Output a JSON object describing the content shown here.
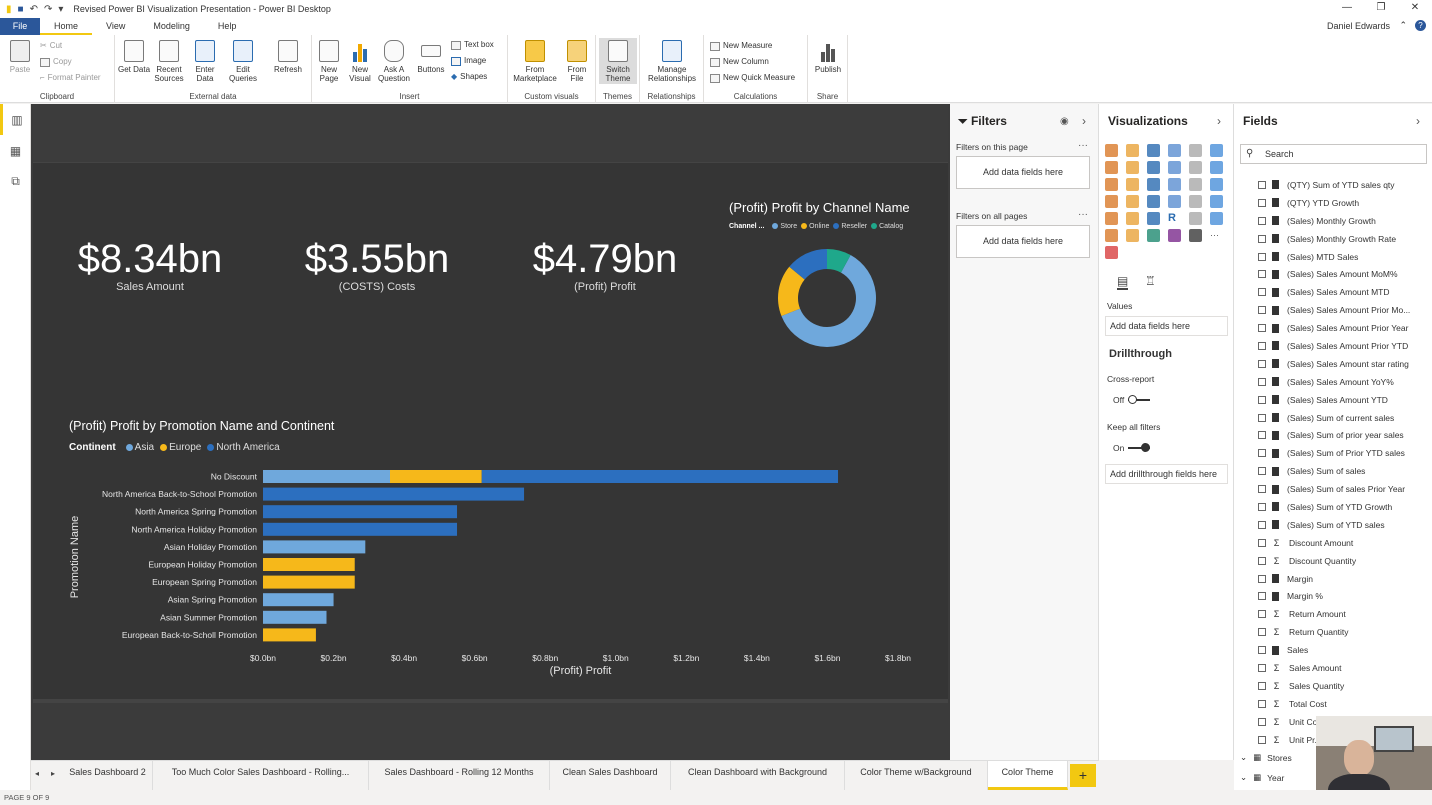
{
  "app": {
    "title": "Revised Power BI Visualization Presentation - Power BI Desktop",
    "user": "Daniel Edwards"
  },
  "menu": {
    "file": "File",
    "tabs": [
      "Home",
      "View",
      "Modeling",
      "Help"
    ]
  },
  "ribbon": {
    "clipboard": {
      "paste": "Paste",
      "cut": "Cut",
      "copy": "Copy",
      "format_painter": "Format Painter",
      "label": "Clipboard"
    },
    "external": {
      "get_data": "Get Data",
      "recent_sources": "Recent Sources",
      "enter_data": "Enter Data",
      "edit_queries": "Edit Queries",
      "refresh": "Refresh",
      "label": "External data"
    },
    "insert": {
      "new_page": "New Page",
      "new_visual": "New Visual",
      "ask_question": "Ask A Question",
      "buttons": "Buttons",
      "text_box": "Text box",
      "image": "Image",
      "shapes": "Shapes",
      "label": "Insert"
    },
    "custom": {
      "from_marketplace": "From Marketplace",
      "from_file": "From File",
      "label": "Custom visuals"
    },
    "themes": {
      "switch_theme": "Switch Theme",
      "label": "Themes"
    },
    "relationships": {
      "manage": "Manage Relationships",
      "label": "Relationships"
    },
    "calculations": {
      "new_measure": "New Measure",
      "new_column": "New Column",
      "new_quick_measure": "New Quick Measure",
      "label": "Calculations"
    },
    "share": {
      "publish": "Publish",
      "label": "Share"
    }
  },
  "kpis": [
    {
      "value": "$8.34bn",
      "label": "Sales Amount"
    },
    {
      "value": "$3.55bn",
      "label": "(COSTS) Costs"
    },
    {
      "value": "$4.79bn",
      "label": "(Profit) Profit"
    }
  ],
  "colors": {
    "store": "#6fa8dc",
    "online": "#f6b81a",
    "reseller": "#2c6fbf",
    "catalog": "#1fa88b",
    "asia": "#6fa8dc",
    "europe": "#f6b81a",
    "north_america": "#2c6fbf"
  },
  "chart_data": [
    {
      "type": "pie",
      "title": "(Profit) Profit by Channel Name",
      "legend_title": "Channel ...",
      "categories": [
        "Store",
        "Online",
        "Reseller",
        "Catalog"
      ],
      "values": [
        61,
        17,
        14,
        8
      ]
    },
    {
      "type": "bar",
      "orientation": "horizontal",
      "stacked": true,
      "title": "(Profit) Profit by Promotion Name and Continent",
      "legend_title": "Continent",
      "xlabel": "(Profit) Profit",
      "ylabel": "Promotion Name",
      "xlim": [
        0,
        1.8
      ],
      "xticks": [
        "$0.0bn",
        "$0.2bn",
        "$0.4bn",
        "$0.6bn",
        "$0.8bn",
        "$1.0bn",
        "$1.2bn",
        "$1.4bn",
        "$1.6bn",
        "$1.8bn"
      ],
      "categories": [
        "No Discount",
        "North America Back-to-School Promotion",
        "North America Spring Promotion",
        "North America Holiday Promotion",
        "Asian Holiday Promotion",
        "European Holiday Promotion",
        "European Spring Promotion",
        "Asian Spring Promotion",
        "Asian Summer Promotion",
        "European Back-to-Scholl Promotion"
      ],
      "series": [
        {
          "name": "Asia",
          "values": [
            0.36,
            0,
            0,
            0,
            0.29,
            0,
            0,
            0.2,
            0.18,
            0
          ]
        },
        {
          "name": "Europe",
          "values": [
            0.26,
            0,
            0,
            0,
            0,
            0.26,
            0.26,
            0,
            0,
            0.15
          ]
        },
        {
          "name": "North America",
          "values": [
            1.01,
            0.74,
            0.55,
            0.55,
            0,
            0,
            0,
            0,
            0,
            0
          ]
        }
      ]
    }
  ],
  "filters": {
    "title": "Filters",
    "on_page": "Filters on this page",
    "on_all": "Filters on all pages",
    "add": "Add data fields here"
  },
  "viz": {
    "title": "Visualizations",
    "values": "Values",
    "add_values": "Add data fields here",
    "drillthrough": "Drillthrough",
    "cross_report": "Cross-report",
    "off": "Off",
    "keep_filters": "Keep all filters",
    "on": "On",
    "add_drill": "Add drillthrough fields here"
  },
  "fields": {
    "title": "Fields",
    "search": "Search",
    "items": [
      {
        "name": "(QTY) Sum of YTD sales qty",
        "kind": "calc"
      },
      {
        "name": "(QTY) YTD Growth",
        "kind": "calc"
      },
      {
        "name": "(Sales) Monthly Growth",
        "kind": "calc"
      },
      {
        "name": "(Sales) Monthly Growth Rate",
        "kind": "calc"
      },
      {
        "name": "(Sales) MTD Sales",
        "kind": "calc"
      },
      {
        "name": "(Sales) Sales Amount MoM%",
        "kind": "calc"
      },
      {
        "name": "(Sales) Sales Amount MTD",
        "kind": "calc"
      },
      {
        "name": "(Sales) Sales Amount Prior Mo...",
        "kind": "calc"
      },
      {
        "name": "(Sales) Sales Amount Prior Year",
        "kind": "calc"
      },
      {
        "name": "(Sales) Sales Amount Prior YTD",
        "kind": "calc"
      },
      {
        "name": "(Sales) Sales Amount star rating",
        "kind": "calc"
      },
      {
        "name": "(Sales) Sales Amount YoY%",
        "kind": "calc"
      },
      {
        "name": "(Sales) Sales Amount YTD",
        "kind": "calc"
      },
      {
        "name": "(Sales) Sum of current sales",
        "kind": "calc"
      },
      {
        "name": "(Sales) Sum of prior year sales",
        "kind": "calc"
      },
      {
        "name": "(Sales) Sum of Prior YTD sales",
        "kind": "calc"
      },
      {
        "name": "(Sales) Sum of sales",
        "kind": "calc"
      },
      {
        "name": "(Sales) Sum of sales Prior Year",
        "kind": "calc"
      },
      {
        "name": "(Sales) Sum of YTD Growth",
        "kind": "calc"
      },
      {
        "name": "(Sales) Sum of YTD sales",
        "kind": "calc"
      },
      {
        "name": "Discount Amount",
        "kind": "sum"
      },
      {
        "name": "Discount Quantity",
        "kind": "sum"
      },
      {
        "name": "Margin",
        "kind": "calc"
      },
      {
        "name": "Margin %",
        "kind": "calc"
      },
      {
        "name": "Return Amount",
        "kind": "sum"
      },
      {
        "name": "Return Quantity",
        "kind": "sum"
      },
      {
        "name": "Sales",
        "kind": "calc"
      },
      {
        "name": "Sales Amount",
        "kind": "sum"
      },
      {
        "name": "Sales Quantity",
        "kind": "sum"
      },
      {
        "name": "Total Cost",
        "kind": "sum"
      },
      {
        "name": "Unit Co...",
        "kind": "sum"
      },
      {
        "name": "Unit Pr...",
        "kind": "sum"
      }
    ],
    "tables": [
      "Stores",
      "Year"
    ]
  },
  "pages": [
    "Sales Dashboard 2",
    "Too Much Color Sales Dashboard - Rolling...",
    "Sales Dashboard - Rolling 12 Months",
    "Clean Sales Dashboard",
    "Clean Dashboard with Background",
    "Color Theme w/Background",
    "Color Theme"
  ],
  "status": "PAGE 9 OF 9"
}
